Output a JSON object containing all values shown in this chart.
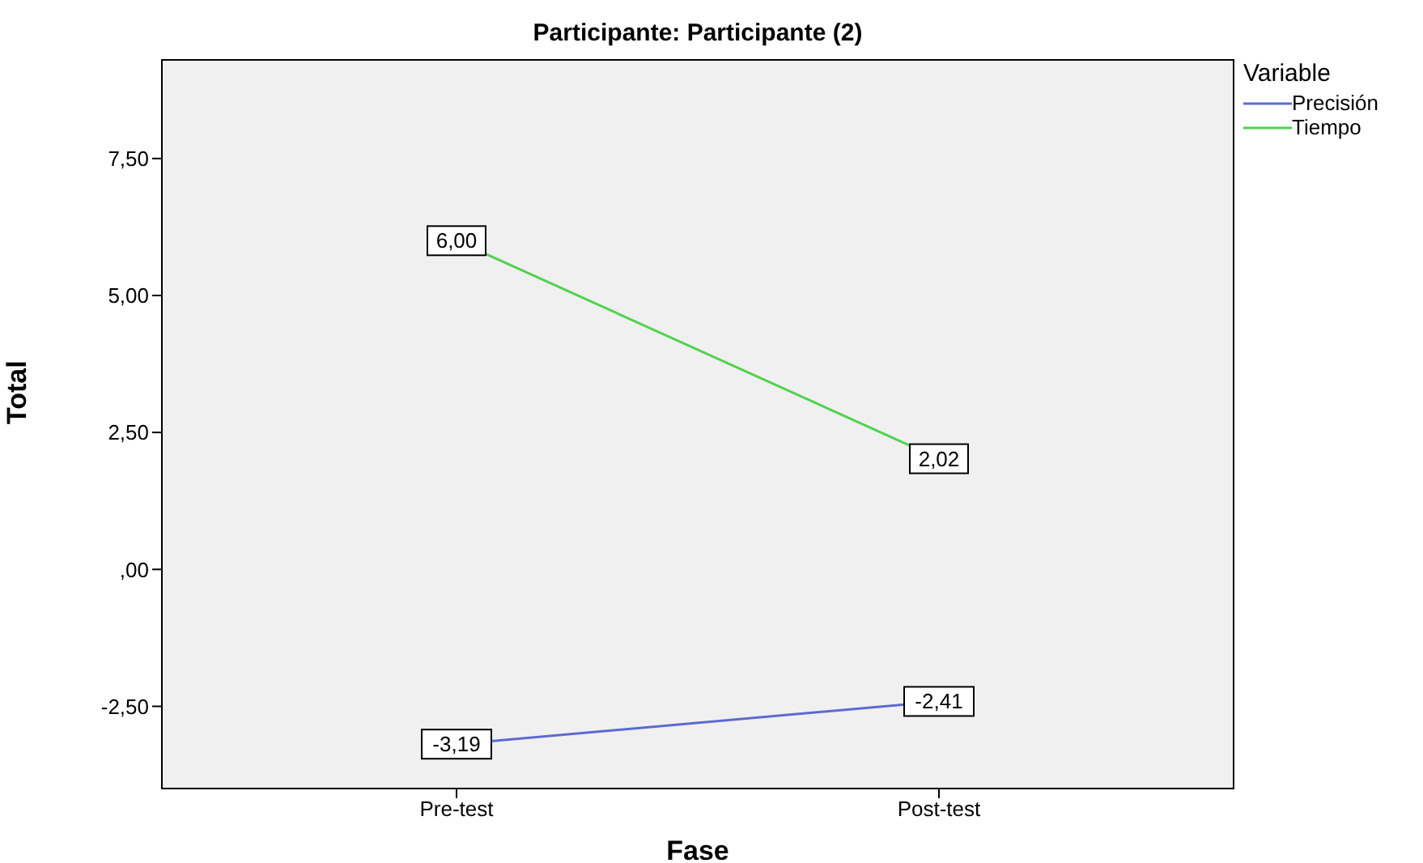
{
  "chart_data": {
    "type": "line",
    "title": "Participante: Participante (2)",
    "xlabel": "Fase",
    "ylabel": "Total",
    "legend_title": "Variable",
    "categories": [
      "Pre-test",
      "Post-test"
    ],
    "series": [
      {
        "name": "Precisión",
        "color": "#5b6bd0",
        "values": [
          -3.19,
          -2.41
        ],
        "value_labels": [
          "-3,19",
          "-2,41"
        ]
      },
      {
        "name": "Tiempo",
        "color": "#4fd24f",
        "values": [
          6.0,
          2.02
        ],
        "value_labels": [
          "6,00",
          "2,02"
        ]
      }
    ],
    "ylim": [
      -4,
      9.3
    ],
    "yticks": [
      {
        "value": -2.5,
        "label": "-2,50"
      },
      {
        "value": 0,
        "label": ",00"
      },
      {
        "value": 2.5,
        "label": "2,50"
      },
      {
        "value": 5,
        "label": "5,00"
      },
      {
        "value": 7.5,
        "label": "7,50"
      }
    ],
    "legend": "top right",
    "marker": "square",
    "line_style": "solid"
  }
}
